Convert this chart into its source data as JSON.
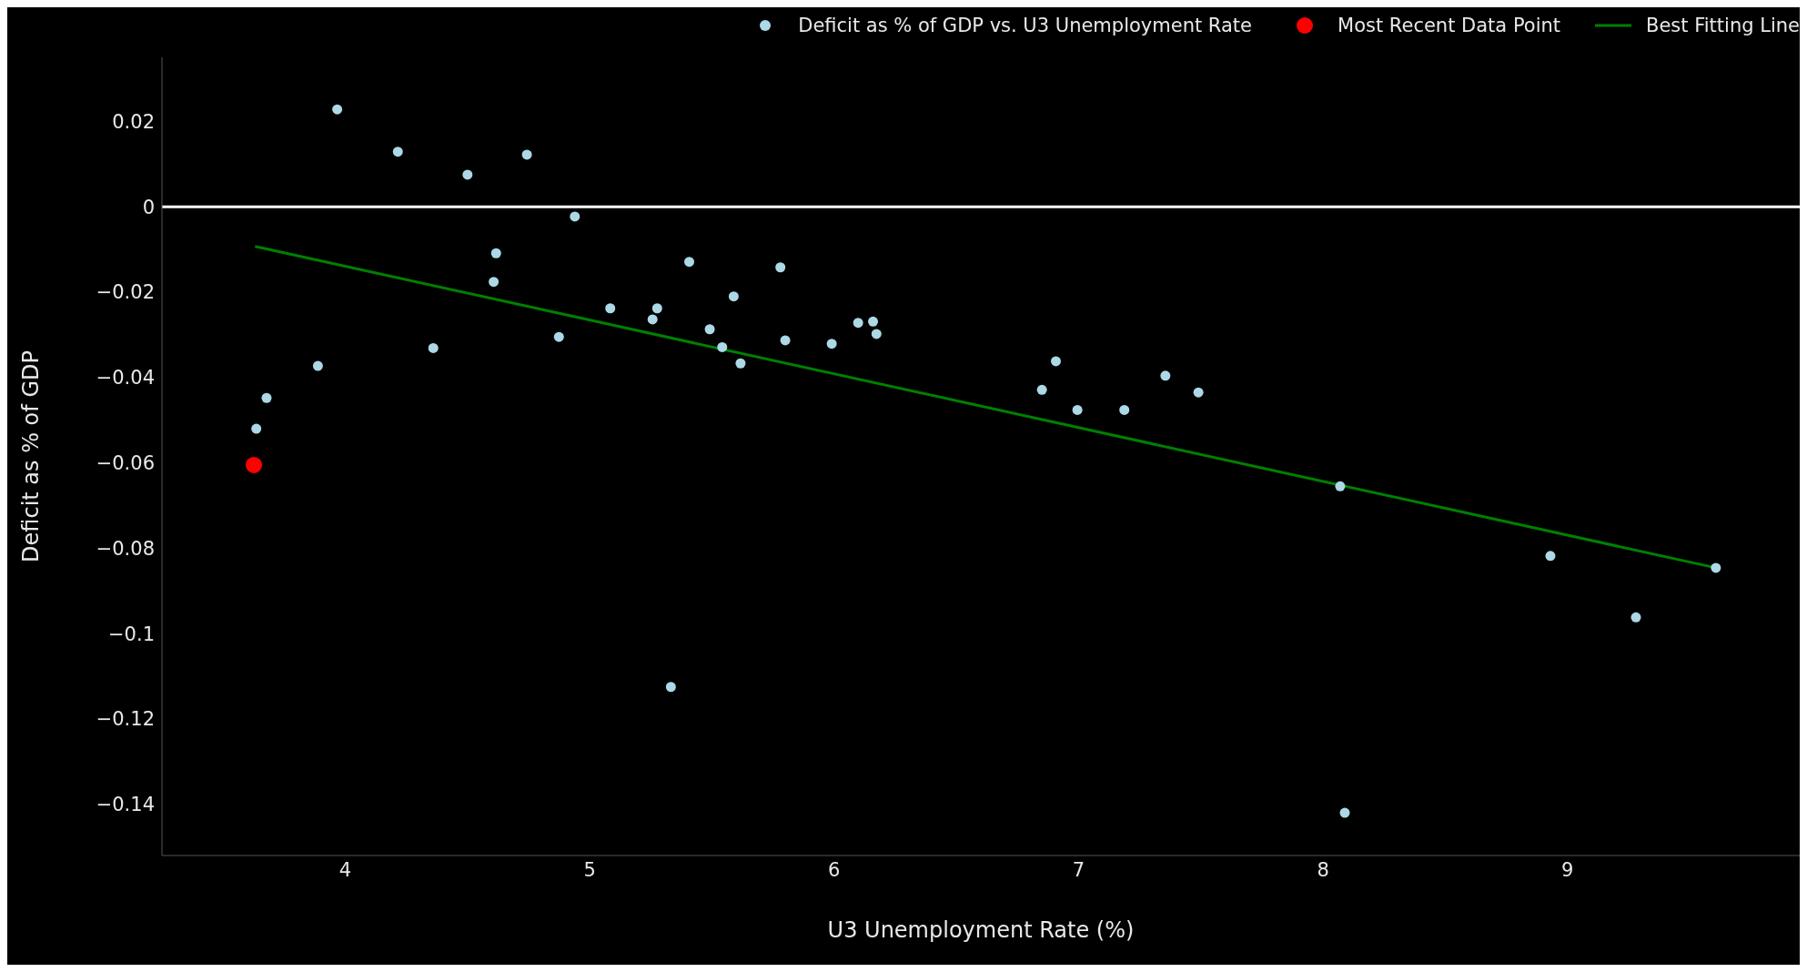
{
  "chart_data": {
    "type": "scatter",
    "xlabel": "U3 Unemployment Rate (%)",
    "ylabel": "Deficit as % of GDP",
    "legend": "top right",
    "grid": false,
    "xlim": [
      3.25,
      9.95
    ],
    "xticks": [
      4,
      5,
      6,
      7,
      8,
      9
    ],
    "ylim": [
      -0.152,
      0.035
    ],
    "yticks": [
      {
        "value": 0.02,
        "label": "0.02"
      },
      {
        "value": 0,
        "label": "0"
      },
      {
        "value": -0.02,
        "label": "−0.02"
      },
      {
        "value": -0.04,
        "label": "−0.04"
      },
      {
        "value": -0.06,
        "label": "−0.06"
      },
      {
        "value": -0.08,
        "label": "−0.08"
      },
      {
        "value": -0.1,
        "label": "−0.1"
      },
      {
        "value": -0.12,
        "label": "−0.12"
      },
      {
        "value": -0.14,
        "label": "−0.14"
      }
    ],
    "ref_lines": [
      {
        "axis": "y",
        "value": 0,
        "color": "#ffffff"
      }
    ],
    "series": [
      {
        "name": "Deficit as % of GDP vs. U3 Unemployment Rate",
        "marker": "circle",
        "color": "#add8e6",
        "x": [
          3.967,
          4.215,
          4.5,
          4.743,
          4.939,
          4.617,
          4.607,
          4.36,
          4.874,
          3.888,
          3.678,
          3.636,
          5.084,
          5.276,
          5.257,
          5.407,
          5.491,
          5.542,
          5.589,
          5.617,
          5.78,
          5.8,
          5.99,
          6.098,
          6.159,
          6.173,
          6.85,
          6.907,
          6.995,
          7.187,
          7.355,
          7.49,
          8.07,
          8.93,
          9.28,
          9.607,
          5.332,
          8.089
        ],
        "values": [
          0.0228,
          0.0129,
          0.0075,
          0.0122,
          -0.0023,
          -0.0109,
          -0.0176,
          -0.0331,
          -0.0305,
          -0.0373,
          -0.0448,
          -0.052,
          -0.0238,
          -0.0238,
          -0.0264,
          -0.0129,
          -0.0287,
          -0.0329,
          -0.021,
          -0.0367,
          -0.0142,
          -0.0313,
          -0.0321,
          -0.0272,
          -0.0269,
          -0.0298,
          -0.0429,
          -0.0362,
          -0.0476,
          -0.0476,
          -0.0396,
          -0.0435,
          -0.0655,
          -0.0818,
          -0.0962,
          -0.0846,
          -0.1125,
          -0.142
        ]
      },
      {
        "name": "Most Recent Data Point",
        "marker": "circle",
        "color": "#ff0000",
        "x": [
          3.626
        ],
        "values": [
          -0.0605
        ]
      },
      {
        "name": "Best Fitting Line",
        "type": "line",
        "color": "#008000",
        "x": [
          3.631,
          9.607
        ],
        "values": [
          -0.0093,
          -0.0846
        ]
      }
    ]
  }
}
